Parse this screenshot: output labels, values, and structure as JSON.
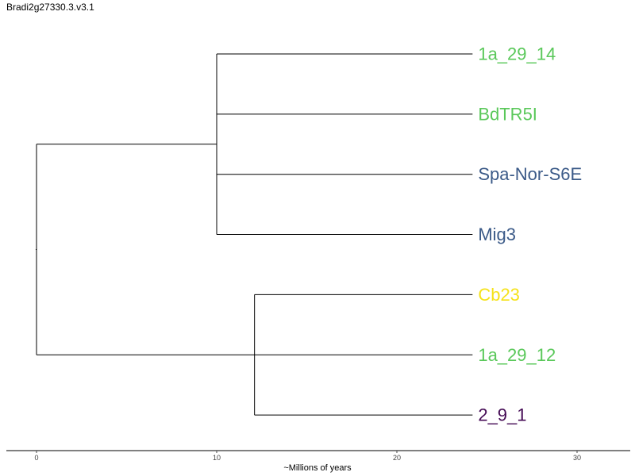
{
  "title": "Bradi2g27330.3.v3.1",
  "axis": {
    "label": "~Millions of years",
    "ticks": [
      0,
      10,
      20,
      30
    ],
    "range": [
      -1.6,
      33
    ]
  },
  "tips": [
    {
      "name": "1a_29_14",
      "color": "#5ac85a"
    },
    {
      "name": "BdTR5I",
      "color": "#5ac85a"
    },
    {
      "name": "Spa-Nor-S6E",
      "color": "#3b5a88"
    },
    {
      "name": "Mig3",
      "color": "#3b5a88"
    },
    {
      "name": "Cb23",
      "color": "#f5e21a"
    },
    {
      "name": "1a_29_12",
      "color": "#5ac85a"
    },
    {
      "name": "2_9_1",
      "color": "#440a54"
    }
  ],
  "tree": {
    "name": "root",
    "pos": 0,
    "children": [
      {
        "name": "clade-a",
        "pos": 10,
        "children": [
          {
            "tip": 0,
            "pos": 24.2
          },
          {
            "tip": 1,
            "pos": 24.2
          },
          {
            "tip": 2,
            "pos": 24.2
          },
          {
            "tip": 3,
            "pos": 24.2
          }
        ]
      },
      {
        "name": "clade-b",
        "pos": 12.1,
        "children": [
          {
            "tip": 4,
            "pos": 24.2
          },
          {
            "tip": 5,
            "pos": 24.2
          },
          {
            "tip": 6,
            "pos": 24.2
          }
        ]
      }
    ]
  },
  "colors": {
    "branch": "#000000",
    "axis": "#000000"
  }
}
